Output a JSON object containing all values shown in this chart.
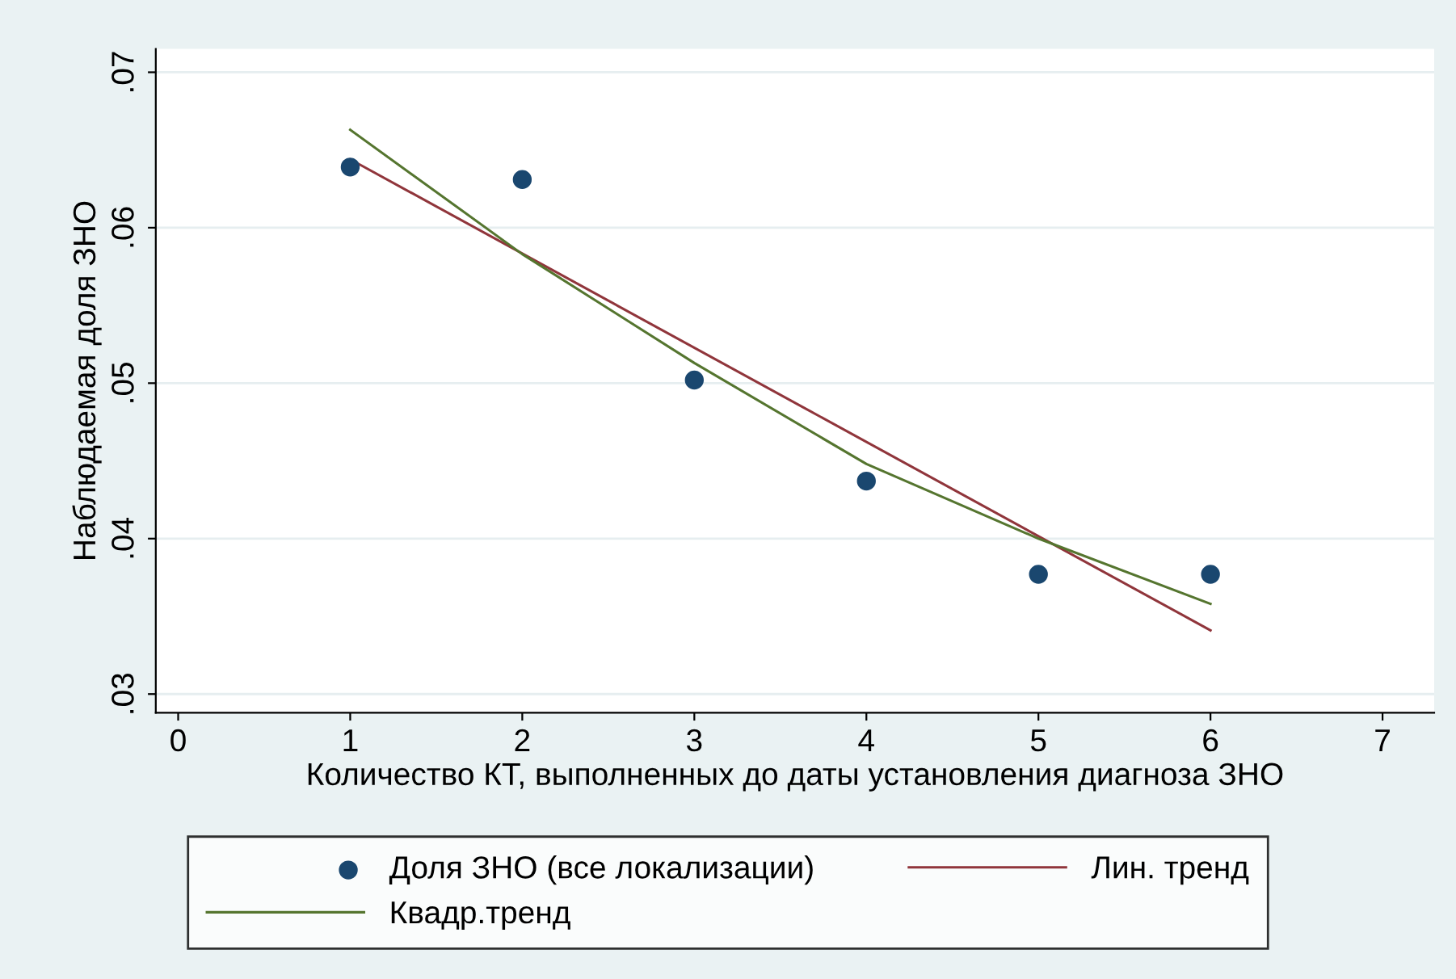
{
  "chart_data": {
    "type": "line",
    "xlabel": "Количество КТ, выполненных до даты установления диагноза ЗНО",
    "ylabel": "Наблюдаемая доля ЗНО",
    "xlim": [
      -0.13,
      7.3
    ],
    "xticks": [
      0,
      1,
      2,
      3,
      4,
      5,
      6,
      7
    ],
    "ylim": [
      0.0288,
      0.0715
    ],
    "yticks": [
      {
        "value": 0.03,
        "label": ".03"
      },
      {
        "value": 0.04,
        "label": ".04"
      },
      {
        "value": 0.05,
        "label": ".05"
      },
      {
        "value": 0.06,
        "label": ".06"
      },
      {
        "value": 0.07,
        "label": ".07"
      }
    ],
    "grid": "y",
    "legend": "bottom",
    "series": [
      {
        "name": "Доля ЗНО (все локализации)",
        "type": "scatter",
        "marker": "circle",
        "color": "#1a476f",
        "x": [
          1,
          2,
          3,
          4,
          5,
          6
        ],
        "values": [
          0.0639,
          0.0631,
          0.0502,
          0.0437,
          0.0377,
          0.0377
        ]
      },
      {
        "name": "Лин. тренд",
        "color": "#90353b",
        "x": [
          1,
          6
        ],
        "values": [
          0.0644,
          0.0341
        ]
      },
      {
        "name": "Квадр.тренд",
        "type": "line",
        "color": "#55752f",
        "x": [
          1,
          2,
          3,
          4,
          5,
          6
        ],
        "values": [
          0.0663,
          0.0583,
          0.0513,
          0.0448,
          0.04,
          0.0358
        ]
      }
    ]
  }
}
